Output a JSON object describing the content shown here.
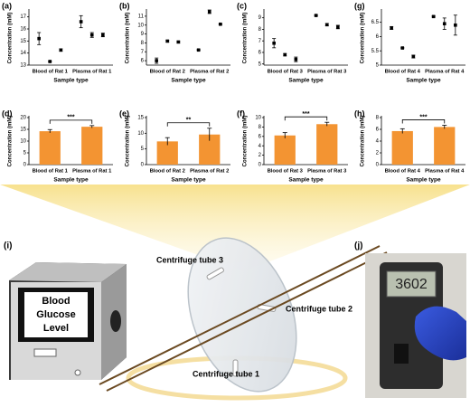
{
  "chart_data": [
    {
      "type": "dot",
      "label": "(a)",
      "y_label": "Concentration (mM)",
      "x_label": "Sample type",
      "categories": [
        "Blood of Rat 1",
        "Plasma of Rat 1"
      ],
      "color": "#000000",
      "series": [
        {
          "values": [
            15.2,
            16.6
          ],
          "errors": [
            0.5,
            0.5
          ]
        },
        {
          "values": [
            13.3,
            15.5
          ],
          "errors": [
            0.05,
            0.2
          ]
        },
        {
          "values": [
            14.25,
            15.5
          ],
          "errors": [
            0.1,
            0.15
          ]
        }
      ],
      "ylim": [
        13,
        17.5
      ],
      "yticks": [
        13,
        14,
        15,
        16,
        17
      ]
    },
    {
      "type": "dot",
      "label": "(b)",
      "y_label": "Concentration (mM)",
      "x_label": "Sample type",
      "categories": [
        "Blood of Rat 2",
        "Plasma of Rat 2"
      ],
      "color": "#000000",
      "series": [
        {
          "values": [
            6.0,
            7.2
          ],
          "errors": [
            0.3,
            0.05
          ]
        },
        {
          "values": [
            8.2,
            11.5
          ],
          "errors": [
            0.1,
            0.2
          ]
        },
        {
          "values": [
            8.1,
            10.1
          ],
          "errors": [
            0.1,
            0.05
          ]
        }
      ],
      "ylim": [
        5.5,
        11.6
      ],
      "yticks": [
        6,
        7,
        8,
        9,
        10,
        11
      ]
    },
    {
      "type": "dot",
      "label": "(c)",
      "y_label": "Concentration (mM)",
      "x_label": "Sample type",
      "categories": [
        "Blood of Rat 3",
        "Plasma of Rat 3"
      ],
      "color": "#000000",
      "series": [
        {
          "values": [
            6.8,
            9.2
          ],
          "errors": [
            0.4,
            0.05
          ]
        },
        {
          "values": [
            5.8,
            8.4
          ],
          "errors": [
            0.1,
            0.1
          ]
        },
        {
          "values": [
            5.4,
            8.2
          ],
          "errors": [
            0.2,
            0.15
          ]
        }
      ],
      "ylim": [
        4.9,
        9.6
      ],
      "yticks": [
        5,
        6,
        7,
        8,
        9
      ]
    },
    {
      "type": "dot",
      "label": "(g)",
      "y_label": "Concentration (mM)",
      "x_label": "Sample type",
      "categories": [
        "Blood of Rat 4",
        "Plasma of Rat 4"
      ],
      "color": "#000000",
      "series": [
        {
          "values": [
            6.3,
            6.7
          ],
          "errors": [
            0.05,
            0.02
          ]
        },
        {
          "values": [
            5.6,
            6.45
          ],
          "errors": [
            0.02,
            0.2
          ]
        },
        {
          "values": [
            5.3,
            6.4
          ],
          "errors": [
            0.05,
            0.35
          ]
        }
      ],
      "ylim": [
        5,
        6.9
      ],
      "yticks": [
        5,
        5.5,
        6,
        6.5
      ]
    },
    {
      "type": "bar",
      "label": "(d)",
      "y_label": "Concentration (mM)",
      "x_label": "Sample type",
      "categories": [
        "Blood of Rat 1",
        "Plasma of Rat 1"
      ],
      "color": "#f39432",
      "values": [
        14.2,
        16.1
      ],
      "errors": [
        0.7,
        0.5
      ],
      "significance": "***",
      "ylim": [
        0,
        20
      ],
      "yticks": [
        0,
        5,
        10,
        15,
        20
      ]
    },
    {
      "type": "bar",
      "label": "(e)",
      "y_label": "Concentration (mM)",
      "x_label": "Sample type",
      "categories": [
        "Blood of Rat 2",
        "Plasma of Rat 2"
      ],
      "color": "#f39432",
      "values": [
        7.4,
        9.6
      ],
      "errors": [
        1.2,
        2.0
      ],
      "significance": "**",
      "ylim": [
        0,
        15
      ],
      "yticks": [
        0,
        5,
        10,
        15
      ]
    },
    {
      "type": "bar",
      "label": "(f)",
      "y_label": "Concentration (mM)",
      "x_label": "Sample type",
      "categories": [
        "Blood of Rat 3",
        "Plasma of Rat 3"
      ],
      "color": "#f39432",
      "values": [
        6.2,
        8.6
      ],
      "errors": [
        0.6,
        0.4
      ],
      "significance": "***",
      "ylim": [
        0,
        10
      ],
      "yticks": [
        0,
        2,
        4,
        6,
        8,
        10
      ]
    },
    {
      "type": "bar",
      "label": "(h)",
      "y_label": "Concentration (mM)",
      "x_label": "Sample type",
      "categories": [
        "Blood of Rat 4",
        "Plasma of Rat 4"
      ],
      "color": "#f39432",
      "values": [
        5.7,
        6.4
      ],
      "errors": [
        0.4,
        0.3
      ],
      "significance": "***",
      "ylim": [
        0,
        8
      ],
      "yticks": [
        0,
        2,
        4,
        6,
        8
      ]
    }
  ],
  "illustration": {
    "label": "(i)",
    "screen_text": [
      "Blood",
      "Glucose",
      "Level"
    ],
    "tube_labels": [
      "Centrifuge tube 3",
      "Centrifuge tube 2",
      "Centrifuge tube 1"
    ]
  },
  "photo": {
    "label": "(j)",
    "display": "3602"
  }
}
